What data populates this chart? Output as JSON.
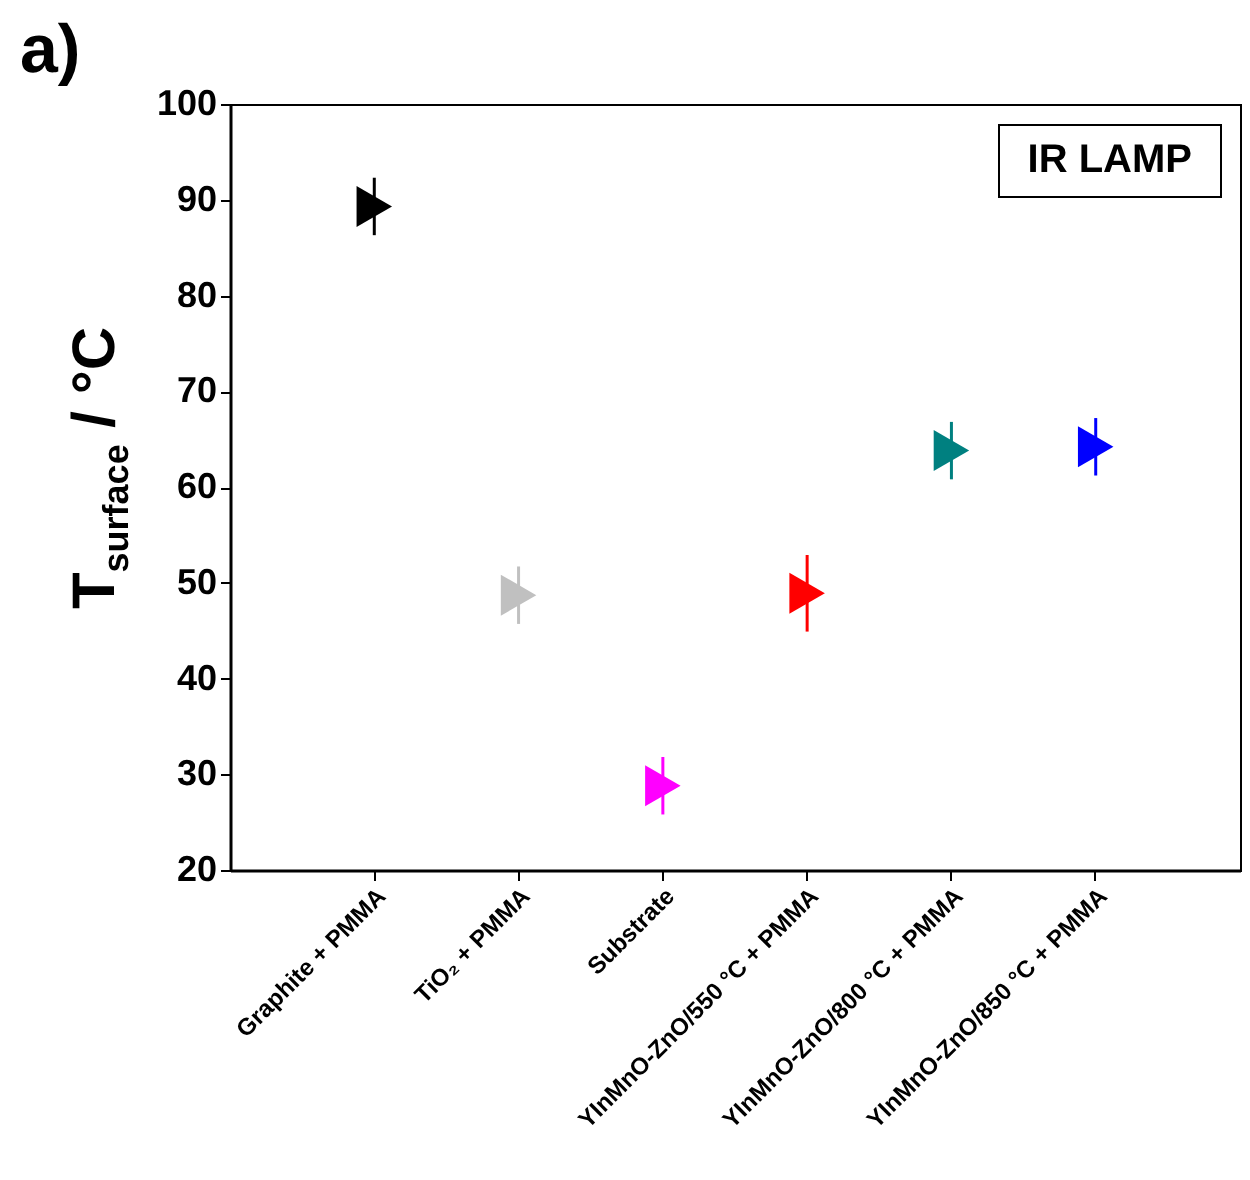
{
  "chart_data": {
    "type": "scatter",
    "ylabel": "T$_{surface}$ / °C",
    "annotations": [
      "a)",
      "IR LAMP"
    ],
    "categories": [
      "Graphite + PMMA",
      "TiO₂ + PMMA",
      "Substrate",
      "YInMnO-ZnO/550 °C + PMMA",
      "YInMnO-ZnO/800 °C + PMMA",
      "YInMnO-ZnO/850 °C + PMMA"
    ],
    "values": [
      89.3,
      48.7,
      28.8,
      48.9,
      63.8,
      64.2
    ],
    "errors": [
      3,
      3,
      3,
      4,
      3,
      3
    ],
    "colors": [
      "#000000",
      "#c0c0c0",
      "#ff00ff",
      "#ff0000",
      "#008080",
      "#0000ff"
    ],
    "ylim": [
      20,
      100
    ],
    "yticks": [
      20,
      30,
      40,
      50,
      60,
      70,
      80,
      90,
      100
    ],
    "marker": "triangle",
    "grid": false
  }
}
